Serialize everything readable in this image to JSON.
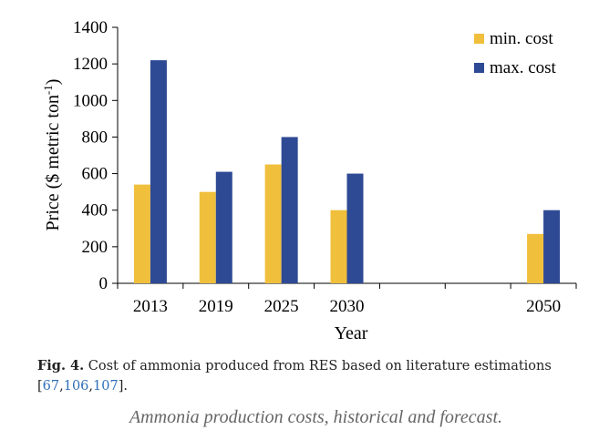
{
  "chart_data": {
    "type": "bar",
    "x": [
      2013,
      2019,
      2025,
      2030,
      2050
    ],
    "x_ticks": [
      "2013",
      "2019",
      "2025",
      "2030",
      "",
      "",
      "2050"
    ],
    "xlim": [
      2010,
      2052
    ],
    "series": [
      {
        "name": "min. cost",
        "color": "#f0bf3c",
        "values": [
          540,
          500,
          650,
          400,
          270
        ]
      },
      {
        "name": "max. cost",
        "color": "#2e4a95",
        "values": [
          1220,
          610,
          800,
          600,
          400
        ]
      }
    ],
    "xlabel": "Year",
    "ylabel": "Price ($ metric ton",
    "ylabel_sup": "-1",
    "ylabel_close": ")",
    "ylim": [
      0,
      1400
    ],
    "yticks": [
      0,
      200,
      400,
      600,
      800,
      1000,
      1200,
      1400
    ],
    "legend_position": "top-right",
    "grid": false
  },
  "caption": {
    "label": "Fig. 4.",
    "text": " Cost of ammonia produced from RES based on literature estimations",
    "open": "[",
    "refs": [
      "67",
      "106",
      "107"
    ],
    "sep": ",",
    "close": "]."
  },
  "subtitle": "Ammonia production costs, historical and forecast."
}
